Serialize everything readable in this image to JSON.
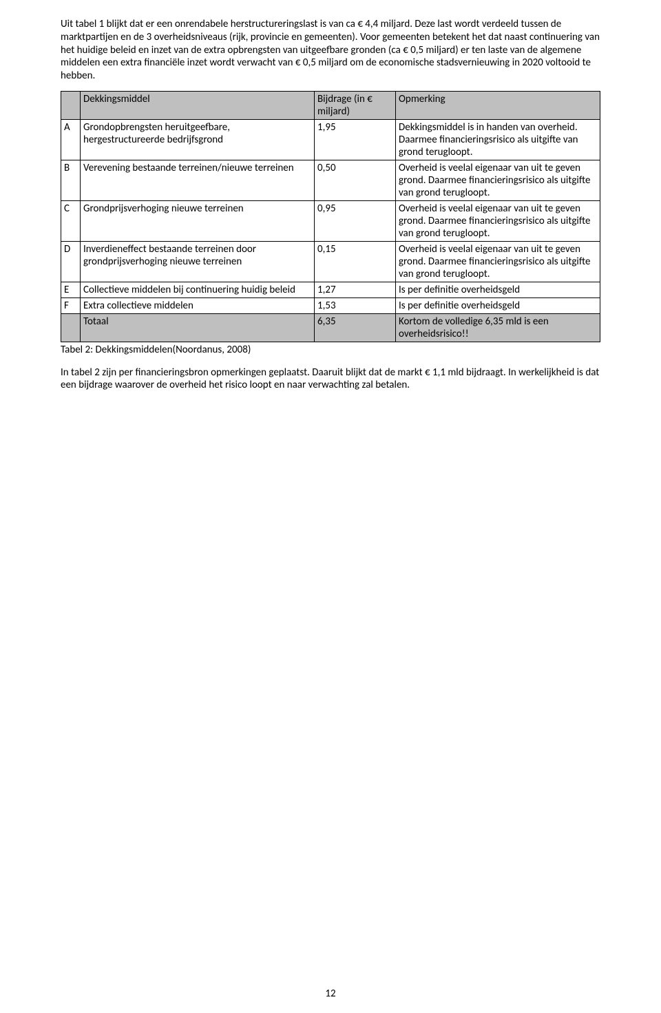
{
  "intro": {
    "p1": "Uit tabel 1 blijkt dat er een onrendabele herstructureringslast is van ca € 4,4 miljard. Deze last wordt verdeeld tussen de marktpartijen en de 3 overheidsniveaus (rijk, provincie en gemeenten). Voor gemeenten betekent het dat naast continuering van het huidige beleid en inzet van de extra opbrengsten van uitgeefbare gronden (ca € 0,5 miljard) er ten laste van de algemene middelen een extra financiële inzet wordt verwacht van € 0,5 miljard om de economische stadsvernieuwing in 2020 voltooid te hebben."
  },
  "table": {
    "header": {
      "col_letter": "",
      "col_desc": "Dekkingsmiddel",
      "col_val": "Bijdrage (in € miljard)",
      "col_note": "Opmerking"
    },
    "rows": [
      {
        "letter": "A",
        "desc": "Grondopbrengsten heruitgeefbare, hergestructureerde bedrijfsgrond",
        "val": "1,95",
        "note": "Dekkingsmiddel is in handen van overheid. Daarmee financieringsrisico als uitgifte van grond terugloopt."
      },
      {
        "letter": "B",
        "desc": "Verevening bestaande terreinen/nieuwe terreinen",
        "val": "0,50",
        "note": "Overheid is veelal eigenaar van uit te geven grond. Daarmee financieringsrisico als uitgifte van grond terugloopt."
      },
      {
        "letter": "C",
        "desc": "Grondprijsverhoging nieuwe terreinen",
        "val": "0,95",
        "note": "Overheid is veelal eigenaar van uit te geven grond. Daarmee financieringsrisico als uitgifte van grond terugloopt."
      },
      {
        "letter": "D",
        "desc": "Inverdieneffect bestaande terreinen door grondprijsverhoging nieuwe terreinen",
        "val": "0,15",
        "note": "Overheid is veelal eigenaar van uit te geven grond. Daarmee financieringsrisico als uitgifte van grond terugloopt."
      },
      {
        "letter": "E",
        "desc": "Collectieve middelen bij continuering huidig beleid",
        "val": "1,27",
        "note": "Is per definitie overheidsgeld"
      },
      {
        "letter": "F",
        "desc": "Extra collectieve middelen",
        "val": "1,53",
        "note": "Is per definitie overheidsgeld"
      }
    ],
    "total": {
      "letter": "",
      "desc": "Totaal",
      "val": "6,35",
      "note": "Kortom de volledige 6,35 mld is een overheidsrisico!!"
    },
    "caption": "Tabel 2: Dekkingsmiddelen(Noordanus, 2008)"
  },
  "outro": {
    "p1": "In tabel 2 zijn per financieringsbron opmerkingen geplaatst. Daaruit blijkt dat de markt € 1,1 mld bijdraagt. In werkelijkheid is dat een bijdrage waarover de overheid het risico loopt en naar verwachting zal betalen."
  },
  "page_number": "12",
  "style": {
    "header_bg": "#bfbfbf",
    "border_color": "#000000",
    "font_size_pt": 11
  }
}
